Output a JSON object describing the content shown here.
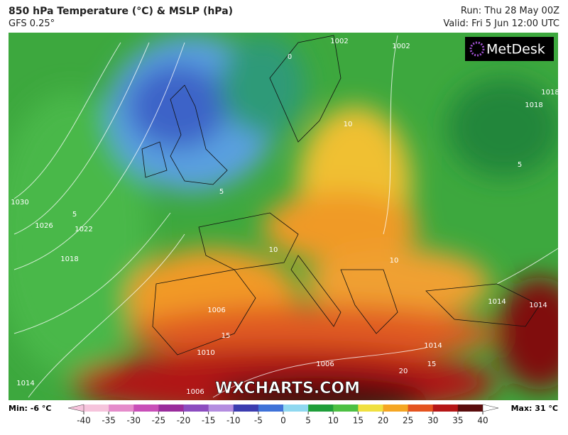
{
  "header": {
    "title": "850 hPa Temperature (°C) & MSLP (hPa)",
    "model": "GFS 0.25°",
    "run": "Run: Thu 28 May 00Z",
    "valid": "Valid: Fri 5 Jun 12:00 UTC"
  },
  "logo": "MetDesk",
  "watermark": "WXCHARTS.COM",
  "map": {
    "contour_labels": [
      "1002",
      "1002",
      "0",
      "1018",
      "1030",
      "1026",
      "1022",
      "1018",
      "5",
      "10",
      "10",
      "10",
      "5",
      "15",
      "1014",
      "1006",
      "1006",
      "1014",
      "20",
      "15",
      "1010",
      "1014",
      "5",
      "1006",
      "1018",
      "1014"
    ]
  },
  "colorbar": {
    "min_label": "Min: -6 °C",
    "max_label": "Max: 31 °C",
    "range": [
      -40,
      40
    ],
    "ticks": [
      -40,
      -35,
      -30,
      -25,
      -20,
      -15,
      -10,
      -5,
      0,
      5,
      10,
      15,
      20,
      25,
      30,
      35,
      40
    ],
    "colors": [
      "#f6c4dc",
      "#e58ccb",
      "#c94fb8",
      "#9a2c9c",
      "#8c4cc0",
      "#b48de0",
      "#3c3cb0",
      "#3f72d8",
      "#8fd8f0",
      "#1f9e3a",
      "#4cc043",
      "#f0e040",
      "#f5a623",
      "#e4531f",
      "#b51616",
      "#5a0c0c"
    ]
  }
}
